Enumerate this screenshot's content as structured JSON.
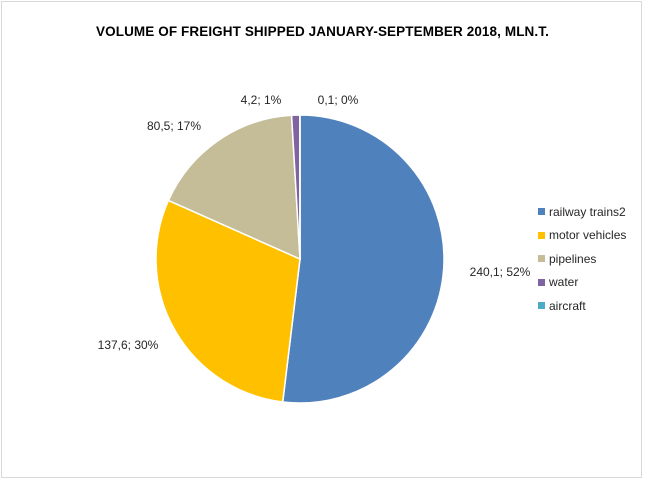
{
  "chart_data": {
    "type": "pie",
    "title": "VOLUME OF FREIGHT SHIPPED JANUARY-SEPTEMBER 2018, MLN.T.",
    "categories": [
      "railway trains2",
      "motor vehicles",
      "pipelines",
      "water",
      "aircraft"
    ],
    "values": [
      240.1,
      137.6,
      80.5,
      4.2,
      0.1
    ],
    "data_labels": [
      "240,1; 52%",
      "137,6; 30%",
      "80,5; 17%",
      "4,2; 1%",
      "0,1; 0%"
    ],
    "colors": [
      "#4f81bd",
      "#ffc000",
      "#c4bd97",
      "#8064a2",
      "#4bacc6"
    ],
    "legend_position": "right"
  }
}
